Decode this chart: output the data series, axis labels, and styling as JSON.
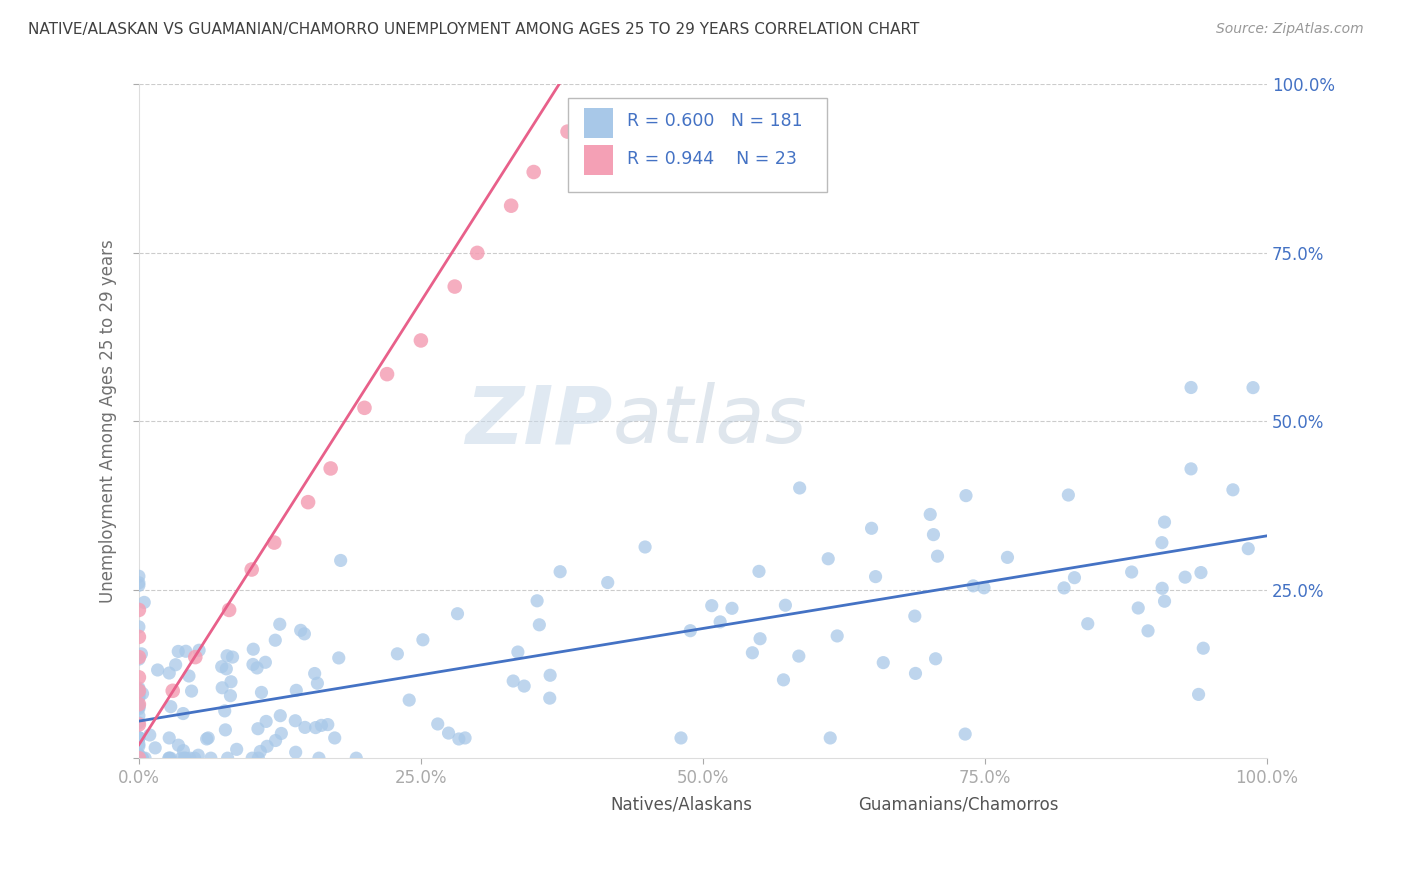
{
  "title": "NATIVE/ALASKAN VS GUAMANIAN/CHAMORRO UNEMPLOYMENT AMONG AGES 25 TO 29 YEARS CORRELATION CHART",
  "source": "Source: ZipAtlas.com",
  "ylabel": "Unemployment Among Ages 25 to 29 years",
  "xlim": [
    0,
    1.0
  ],
  "ylim": [
    0,
    1.0
  ],
  "xticklabels": [
    "0.0%",
    "25.0%",
    "50.0%",
    "75.0%",
    "100.0%"
  ],
  "yticklabels": [
    "",
    "25.0%",
    "50.0%",
    "75.0%",
    "100.0%"
  ],
  "blue_R": 0.6,
  "blue_N": 181,
  "pink_R": 0.944,
  "pink_N": 23,
  "blue_color": "#a8c8e8",
  "pink_color": "#f4a0b5",
  "blue_line_color": "#4472c4",
  "pink_line_color": "#e8608a",
  "legend_label_blue": "Natives/Alaskans",
  "legend_label_pink": "Guamanians/Chamorros",
  "watermark_zip": "ZIP",
  "watermark_atlas": "atlas",
  "background_color": "#ffffff",
  "grid_color": "#cccccc",
  "title_color": "#404040",
  "axis_label_color": "#707070",
  "tick_label_color": "#4472c4",
  "legend_R_color": "#4472c4",
  "blue_line_x0": 0.0,
  "blue_line_y0": 0.055,
  "blue_line_x1": 1.0,
  "blue_line_y1": 0.33,
  "pink_line_x0": 0.0,
  "pink_line_y0": 0.02,
  "pink_line_x1": 0.38,
  "pink_line_y1": 1.02
}
